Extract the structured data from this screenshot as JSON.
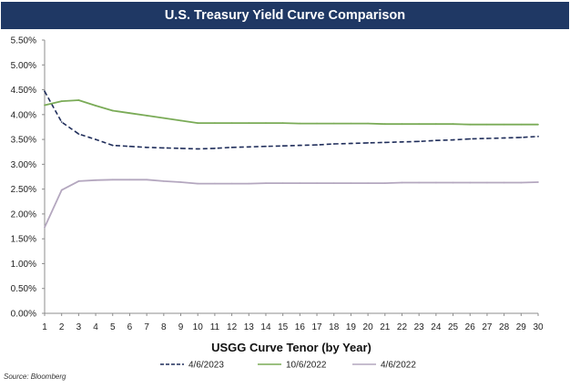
{
  "chart_data": {
    "type": "line",
    "title": "U.S. Treasury Yield Curve Comparison",
    "xlabel": "USGG Curve Tenor (by Year)",
    "ylabel": "",
    "x": [
      1,
      2,
      3,
      4,
      5,
      6,
      7,
      8,
      9,
      10,
      11,
      12,
      13,
      14,
      15,
      16,
      17,
      18,
      19,
      20,
      21,
      22,
      23,
      24,
      25,
      26,
      27,
      28,
      29,
      30
    ],
    "ylim": [
      0,
      5.5
    ],
    "yticks": [
      "0.00%",
      "0.50%",
      "1.00%",
      "1.50%",
      "2.00%",
      "2.50%",
      "3.00%",
      "3.50%",
      "4.00%",
      "4.50%",
      "5.00%",
      "5.50%"
    ],
    "grid": false,
    "legend": "bottom",
    "series": [
      {
        "name": "4/6/2023",
        "color": "#1f2d5a",
        "dashed": true,
        "values": [
          4.47,
          3.85,
          3.61,
          3.5,
          3.38,
          3.36,
          3.34,
          3.33,
          3.32,
          3.31,
          3.32,
          3.34,
          3.35,
          3.36,
          3.37,
          3.38,
          3.39,
          3.41,
          3.42,
          3.43,
          3.44,
          3.45,
          3.46,
          3.48,
          3.49,
          3.51,
          3.52,
          3.53,
          3.54,
          3.56
        ]
      },
      {
        "name": "10/6/2022",
        "color": "#7aab57",
        "dashed": false,
        "values": [
          4.19,
          4.27,
          4.29,
          4.18,
          4.08,
          4.03,
          3.98,
          3.93,
          3.88,
          3.83,
          3.83,
          3.83,
          3.83,
          3.83,
          3.83,
          3.82,
          3.82,
          3.82,
          3.82,
          3.82,
          3.81,
          3.81,
          3.81,
          3.81,
          3.81,
          3.8,
          3.8,
          3.8,
          3.8,
          3.8
        ]
      },
      {
        "name": "4/6/2022",
        "color": "#b4a7bf",
        "dashed": false,
        "values": [
          1.73,
          2.48,
          2.66,
          2.68,
          2.69,
          2.69,
          2.69,
          2.66,
          2.64,
          2.61,
          2.61,
          2.61,
          2.61,
          2.62,
          2.62,
          2.62,
          2.62,
          2.62,
          2.62,
          2.62,
          2.62,
          2.63,
          2.63,
          2.63,
          2.63,
          2.63,
          2.63,
          2.63,
          2.63,
          2.64
        ]
      }
    ]
  },
  "source_note": "Source: Bloomberg"
}
